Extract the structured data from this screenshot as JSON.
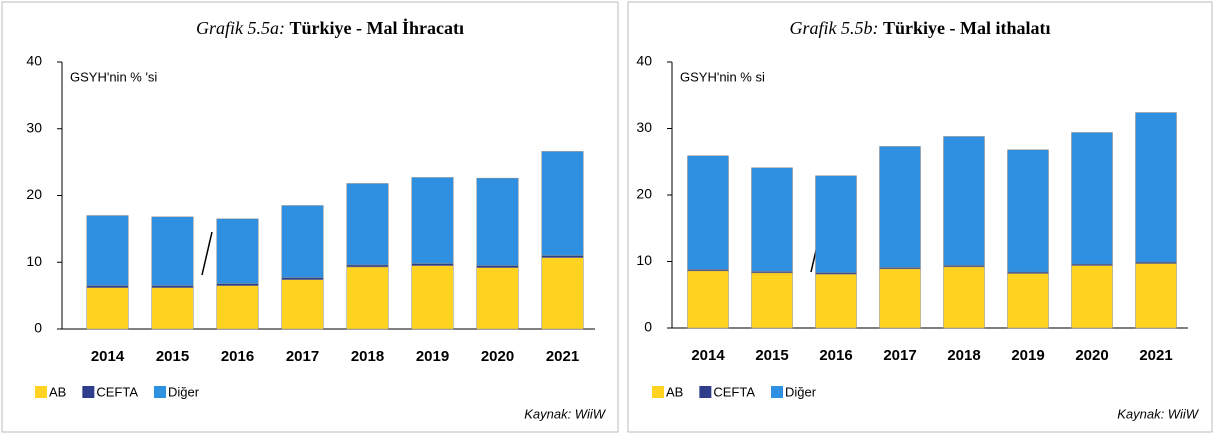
{
  "chart_data": [
    {
      "type": "bar",
      "stacked": true,
      "title_label": "Grafik 5.5a:",
      "title": "Türkiye - Mal İhracatı",
      "y_label": "GSYH'nin % 'si",
      "source": "Kaynak: WiiW",
      "categories": [
        "2014",
        "2015",
        "2016",
        "2017",
        "2018",
        "2019",
        "2020",
        "2021"
      ],
      "series": [
        {
          "name": "AB",
          "color": "#ffd320",
          "values": [
            6.2,
            6.2,
            6.5,
            7.4,
            9.3,
            9.5,
            9.2,
            10.7
          ]
        },
        {
          "name": "CEFTA",
          "color": "#2e3e8c",
          "values": [
            0.3,
            0.3,
            0.3,
            0.3,
            0.3,
            0.3,
            0.3,
            0.3
          ]
        },
        {
          "name": "Diğer",
          "color": "#2f8fe0",
          "values": [
            10.5,
            10.3,
            9.7,
            10.8,
            12.2,
            12.9,
            13.1,
            15.6
          ]
        }
      ],
      "ylim": [
        0,
        40
      ],
      "yticks": [
        0,
        10,
        20,
        30,
        40
      ],
      "grid": false
    },
    {
      "type": "bar",
      "stacked": true,
      "title_label": "Grafik 5.5b:",
      "title": "Türkiye - Mal ithalatı",
      "y_label": "GSYH'nin % si",
      "source": "Kaynak: WiiW",
      "categories": [
        "2014",
        "2015",
        "2016",
        "2017",
        "2018",
        "2019",
        "2020",
        "2021"
      ],
      "series": [
        {
          "name": "AB",
          "color": "#ffd320",
          "values": [
            8.6,
            8.3,
            8.1,
            8.9,
            9.2,
            8.2,
            9.4,
            9.7
          ]
        },
        {
          "name": "CEFTA",
          "color": "#2e3e8c",
          "values": [
            0.2,
            0.2,
            0.2,
            0.2,
            0.2,
            0.2,
            0.2,
            0.2
          ]
        },
        {
          "name": "Diğer",
          "color": "#2f8fe0",
          "values": [
            17.1,
            15.6,
            14.6,
            18.2,
            19.4,
            18.4,
            19.8,
            22.5
          ]
        }
      ],
      "ylim": [
        0,
        40
      ],
      "yticks": [
        0,
        10,
        20,
        30,
        40
      ],
      "grid": false
    }
  ]
}
